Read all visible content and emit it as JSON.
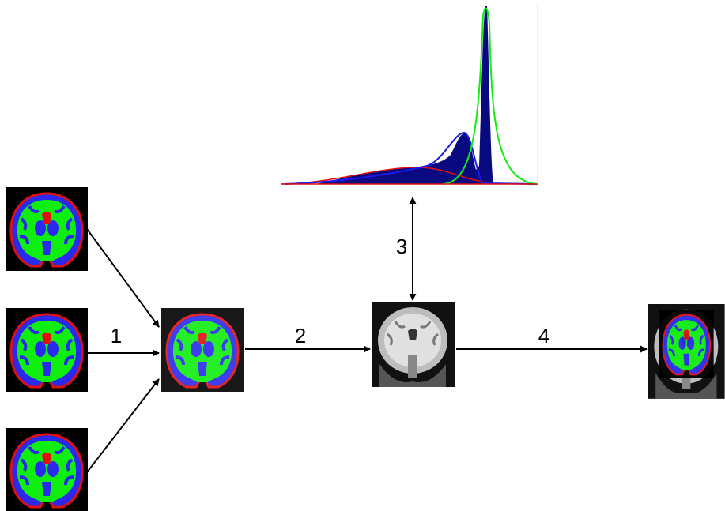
{
  "steps": [
    {
      "label": "1"
    },
    {
      "label": "2"
    },
    {
      "label": "3"
    },
    {
      "label": "4"
    }
  ]
}
